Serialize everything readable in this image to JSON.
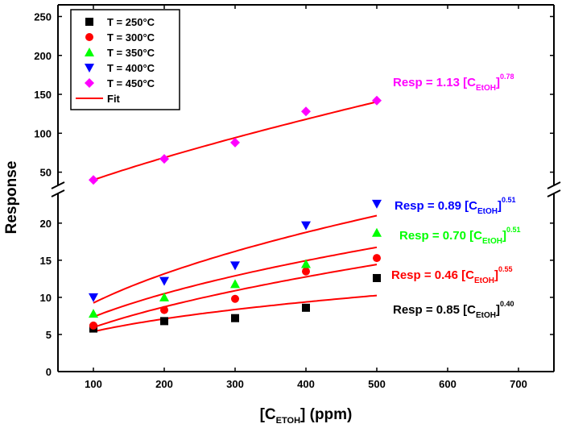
{
  "chart_data": {
    "type": "scatter",
    "title": "",
    "xlabel": {
      "main": "[C",
      "sub": "ETOH",
      "tail": "] (ppm)"
    },
    "ylabel": "Response",
    "xlim": [
      50,
      750
    ],
    "xticks": [
      100,
      200,
      300,
      400,
      500,
      600,
      700
    ],
    "ylim_lower": [
      0,
      24
    ],
    "yticks_lower": [
      0,
      5,
      10,
      15,
      20
    ],
    "ylim_upper": [
      33,
      265
    ],
    "yticks_upper": [
      50,
      100,
      150,
      200,
      250
    ],
    "axis_break": "y",
    "legend_position": "top-left",
    "series": [
      {
        "name": "T = 250°C",
        "marker": "square",
        "color": "#000000",
        "x": [
          100,
          200,
          300,
          400,
          500
        ],
        "y": [
          5.8,
          6.8,
          7.2,
          8.6,
          12.6
        ],
        "fit": {
          "a": 0.85,
          "b": 0.4
        }
      },
      {
        "name": "T = 300°C",
        "marker": "circle",
        "color": "#ff0000",
        "x": [
          100,
          200,
          300,
          400,
          500
        ],
        "y": [
          6.2,
          8.3,
          9.8,
          13.5,
          15.3
        ],
        "fit": {
          "a": 0.46,
          "b": 0.55
        }
      },
      {
        "name": "T = 350°C",
        "marker": "triangle-up",
        "color": "#00ff00",
        "x": [
          100,
          200,
          300,
          400,
          500
        ],
        "y": [
          7.8,
          10.0,
          11.8,
          14.5,
          18.7
        ],
        "fit": {
          "a": 0.7,
          "b": 0.51
        }
      },
      {
        "name": "T = 400°C",
        "marker": "triangle-down",
        "color": "#0000ff",
        "x": [
          100,
          200,
          300,
          400,
          500
        ],
        "y": [
          10.0,
          12.2,
          14.3,
          19.7,
          22.6
        ],
        "fit": {
          "a": 0.89,
          "b": 0.51
        }
      },
      {
        "name": "T = 450°C",
        "marker": "diamond",
        "color": "#ff00ff",
        "x": [
          100,
          200,
          300,
          400,
          500
        ],
        "y": [
          40,
          67,
          88,
          128,
          142
        ],
        "fit": {
          "a": 1.13,
          "b": 0.78
        }
      }
    ],
    "fit_legend": {
      "name": "Fit",
      "color": "#ff0000"
    },
    "annotations": [
      {
        "prefix": "Resp = 1.13 [C",
        "sub": "EtOH",
        "close": "]",
        "sup": "0.78",
        "color": "#ff00ff"
      },
      {
        "prefix": "Resp = 0.89 [C",
        "sub": "EtOH",
        "close": "]",
        "sup": "0.51",
        "color": "#0000ff"
      },
      {
        "prefix": "Resp = 0.70 [C",
        "sub": "EtOH",
        "close": "]",
        "sup": "0.51",
        "color": "#00ff00"
      },
      {
        "prefix": "Resp = 0.46 [C",
        "sub": "EtOH",
        "close": "]",
        "sup": "0.55",
        "color": "#ff0000"
      },
      {
        "prefix": "Resp = 0.85 [C",
        "sub": "EtOH",
        "close": "]",
        "sup": "0.40",
        "color": "#000000"
      }
    ]
  }
}
